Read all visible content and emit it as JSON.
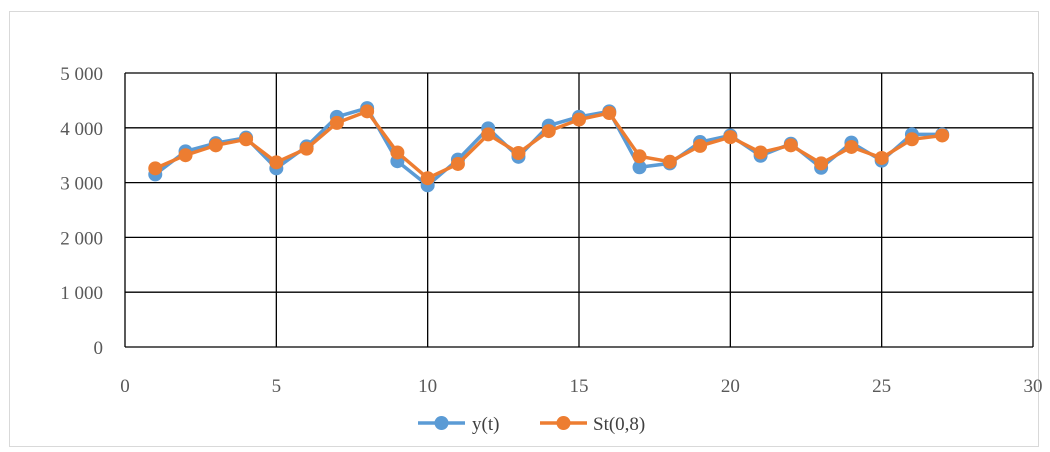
{
  "chart_data": {
    "type": "line",
    "title": "",
    "xlabel": "",
    "ylabel": "",
    "xlim": [
      0,
      30
    ],
    "ylim": [
      0,
      5000
    ],
    "x_ticks": [
      0,
      5,
      10,
      15,
      20,
      25,
      30
    ],
    "x_tick_labels": [
      "0",
      "5",
      "10",
      "15",
      "20",
      "25",
      "30"
    ],
    "y_ticks": [
      0,
      1000,
      2000,
      3000,
      4000,
      5000
    ],
    "y_tick_labels": [
      "0",
      "1 000",
      "2 000",
      "3 000",
      "4 000",
      "5 000"
    ],
    "grid": true,
    "legend_position": "bottom",
    "x": [
      1,
      2,
      3,
      4,
      5,
      6,
      7,
      8,
      9,
      10,
      11,
      12,
      13,
      14,
      15,
      16,
      17,
      18,
      19,
      20,
      21,
      22,
      23,
      24,
      25,
      26,
      27
    ],
    "series": [
      {
        "name": "y(t)",
        "color": "#5b9bd5",
        "values": [
          3150,
          3570,
          3720,
          3820,
          3260,
          3660,
          4200,
          4360,
          3390,
          2950,
          3420,
          3990,
          3470,
          4040,
          4200,
          4300,
          3280,
          3350,
          3740,
          3860,
          3490,
          3710,
          3270,
          3730,
          3400,
          3880,
          3880
        ]
      },
      {
        "name": "St(0,8)",
        "color": "#ed7d31",
        "values": [
          3260,
          3500,
          3680,
          3790,
          3370,
          3620,
          4090,
          4300,
          3550,
          3080,
          3340,
          3880,
          3540,
          3940,
          4150,
          4270,
          3480,
          3380,
          3670,
          3830,
          3550,
          3680,
          3350,
          3650,
          3450,
          3790,
          3860
        ]
      }
    ]
  }
}
